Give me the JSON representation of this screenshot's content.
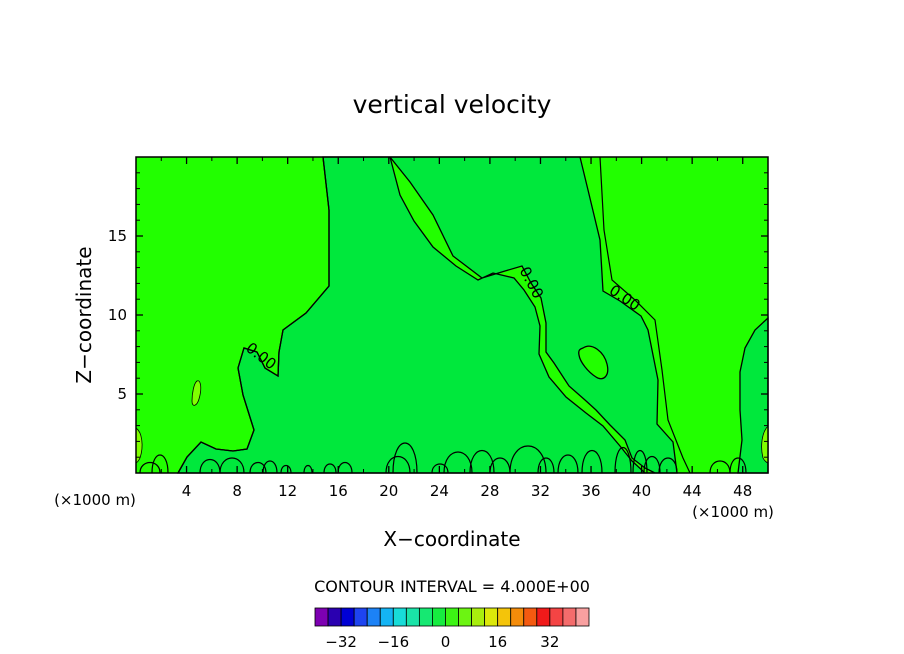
{
  "chart_data": {
    "type": "contour",
    "title": "vertical velocity",
    "xlabel": "X−coordinate",
    "ylabel": "Z−coordinate",
    "x_unit_left": "(×1000 m)",
    "x_unit_right": "(×1000 m)",
    "xlim": [
      0,
      50
    ],
    "ylim": [
      0,
      20
    ],
    "x_ticks": [
      4,
      8,
      12,
      16,
      20,
      24,
      28,
      32,
      36,
      40,
      44,
      48
    ],
    "x_tick_labels": [
      "4",
      "8",
      "12",
      "16",
      "20",
      "24",
      "28",
      "32",
      "36",
      "40",
      "44",
      "48"
    ],
    "y_ticks": [
      5,
      10,
      15
    ],
    "y_tick_labels": [
      "5",
      "10",
      "15"
    ],
    "contour_label": "0.00",
    "contour_interval_text": "CONTOUR INTERVAL = 4.000E+00",
    "colorbar": {
      "ticks": [
        -32,
        -16,
        0,
        16,
        32
      ],
      "tick_labels": [
        "−32",
        "−16",
        "0",
        "16",
        "32"
      ],
      "colors": [
        "#7d00b2",
        "#2a00b0",
        "#0000d4",
        "#1e44f0",
        "#1c82f6",
        "#14b4f4",
        "#18dcd8",
        "#1ae4a8",
        "#16e872",
        "#16ec40",
        "#3cf414",
        "#6cf412",
        "#a8ee0e",
        "#dce80a",
        "#f4c40a",
        "#f48c0a",
        "#f45a10",
        "#f01a1a",
        "#f44444",
        "#f46c6c",
        "#f8a0a0"
      ]
    },
    "fill_colors": {
      "background": "#22ff00",
      "interior": "#00e83c",
      "pocket": "#80ff00"
    }
  }
}
